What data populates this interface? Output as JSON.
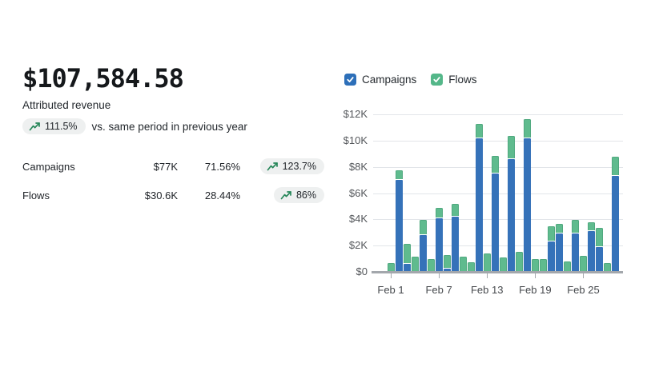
{
  "kpi": {
    "value": "$107,584.58",
    "label": "Attributed revenue",
    "change_badge": "111.5%",
    "change_suffix": "vs. same period in previous year",
    "rows": [
      {
        "label": "Campaigns",
        "value": "$77K",
        "share": "71.56%",
        "change": "123.7%"
      },
      {
        "label": "Flows",
        "value": "$30.6K",
        "share": "28.44%",
        "change": "86%"
      }
    ]
  },
  "legend": [
    {
      "label": "Campaigns",
      "color": "#2d6fb9",
      "checked": true
    },
    {
      "label": "Flows",
      "color": "#54b789",
      "checked": true
    }
  ],
  "chart_data": {
    "type": "bar",
    "stacked": true,
    "title": "",
    "xlabel": "",
    "ylabel": "",
    "x": [
      "Feb 1",
      "Feb 2",
      "Feb 3",
      "Feb 4",
      "Feb 5",
      "Feb 6",
      "Feb 7",
      "Feb 8",
      "Feb 9",
      "Feb 10",
      "Feb 11",
      "Feb 12",
      "Feb 13",
      "Feb 14",
      "Feb 15",
      "Feb 16",
      "Feb 17",
      "Feb 18",
      "Feb 19",
      "Feb 20",
      "Feb 21",
      "Feb 22",
      "Feb 23",
      "Feb 24",
      "Feb 25",
      "Feb 26",
      "Feb 27",
      "Feb 28",
      "Feb 29"
    ],
    "series": [
      {
        "name": "Campaigns",
        "color": "#3572b9",
        "unit": "$K",
        "values": [
          0,
          7.0,
          0.6,
          0,
          2.8,
          0,
          4.1,
          0.25,
          4.2,
          0,
          0,
          10.2,
          0,
          7.5,
          0,
          8.6,
          0,
          10.2,
          0,
          0,
          2.3,
          2.9,
          0,
          2.9,
          0,
          3.1,
          1.9,
          0,
          7.3
        ]
      },
      {
        "name": "Flows",
        "color": "#5fbb8e",
        "unit": "$K",
        "values": [
          0.65,
          0.7,
          1.5,
          1.15,
          1.1,
          0.95,
          0.7,
          0.95,
          0.9,
          1.15,
          0.75,
          1.0,
          1.4,
          1.3,
          1.1,
          1.7,
          1.5,
          1.4,
          1.0,
          1.0,
          1.1,
          0.7,
          0.8,
          1.0,
          1.2,
          0.6,
          1.4,
          0.7,
          1.4
        ]
      }
    ],
    "ylim_k": [
      0,
      12
    ],
    "y_ticks": [
      {
        "value": 0,
        "label": "$0"
      },
      {
        "value": 2,
        "label": "$2K"
      },
      {
        "value": 4,
        "label": "$4K"
      },
      {
        "value": 6,
        "label": "$6K"
      },
      {
        "value": 8,
        "label": "$8K"
      },
      {
        "value": 10,
        "label": "$10K"
      },
      {
        "value": 12,
        "label": "$12K"
      }
    ],
    "x_ticks": [
      {
        "at": 0,
        "label": "Feb 1"
      },
      {
        "at": 6,
        "label": "Feb 7"
      },
      {
        "at": 12,
        "label": "Feb 13"
      },
      {
        "at": 18,
        "label": "Feb 19"
      },
      {
        "at": 24,
        "label": "Feb 25"
      }
    ],
    "grid": true,
    "legend_position": "top"
  },
  "colors": {
    "campaigns_bar": "#3572b9",
    "flows_bar": "#5fbb8e",
    "badge_background": "#eef0f0",
    "trend_arrow_green": "#27875a",
    "gridline": "#e2e5e9",
    "axis_line": "#a3a7ac"
  }
}
